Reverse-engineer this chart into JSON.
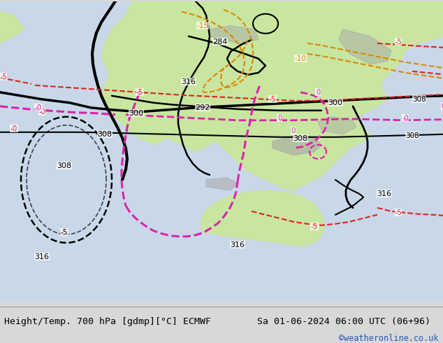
{
  "title_left": "Height/Temp. 700 hPa [gdmp][°C] ECMWF",
  "title_right": "Sa 01-06-2024 06:00 UTC (06+96)",
  "copyright": "©weatheronline.co.uk",
  "bg_color": "#d8d8d8",
  "land_color": "#c8e6a0",
  "sea_color": "#c8d8e8",
  "terrain_color": "#a8a8a8",
  "bottom_bg": "#e0e0e0",
  "title_font_size": 9.5,
  "copyright_color": "#2255bb",
  "copyright_font_size": 8.5,
  "fig_width": 6.34,
  "fig_height": 4.9,
  "black_line_color": "#000000",
  "red_dash_color": "#dd2222",
  "pink_dash_color": "#dd22aa",
  "orange_dash_color": "#dd8800"
}
